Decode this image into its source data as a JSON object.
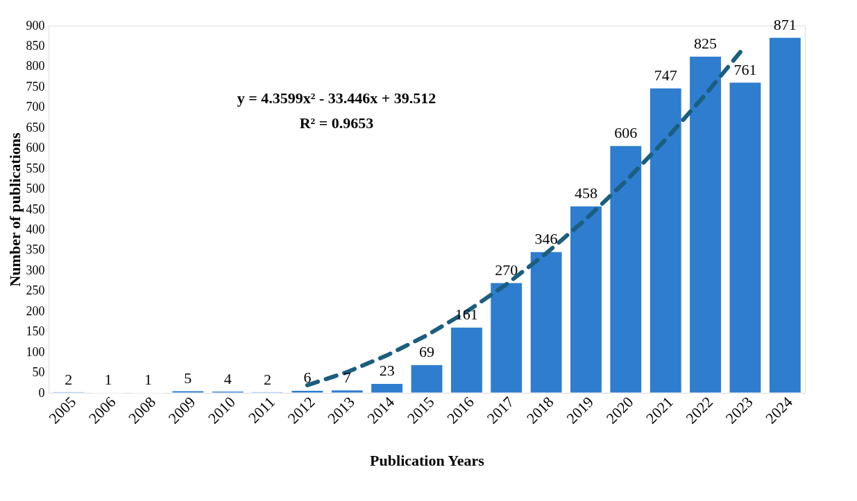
{
  "chart_data": {
    "type": "bar",
    "xlabel": "Publication Years",
    "ylabel": "Number of publications",
    "categories": [
      "2005",
      "2006",
      "2008",
      "2009",
      "2010",
      "2011",
      "2012",
      "2013",
      "2014",
      "2015",
      "2016",
      "2017",
      "2018",
      "2019",
      "2020",
      "2021",
      "2022",
      "2023",
      "2024"
    ],
    "series": [
      {
        "color": "#2e7dcf",
        "values": [
          2,
          1,
          1,
          5,
          4,
          2,
          6,
          7,
          23,
          69,
          161,
          270,
          346,
          458,
          606,
          747,
          825,
          761,
          871
        ],
        "value_labels": [
          "2",
          "1",
          "1",
          "5",
          "4",
          "2",
          "6",
          "7",
          "23",
          "69",
          "161",
          "270",
          "346",
          "458",
          "606",
          "747",
          "825",
          "761",
          "871"
        ]
      },
      {
        "type": "line",
        "color": "#1b5e7e",
        "line_style": "dashed",
        "values": [
          null,
          null,
          null,
          null,
          null,
          null,
          19,
          51,
          92,
          141,
          199,
          266,
          342,
          426,
          519,
          621,
          731,
          850,
          null
        ]
      }
    ],
    "ylim": [
      0,
      900
    ],
    "yticks": [
      0,
      50,
      100,
      150,
      200,
      250,
      300,
      350,
      400,
      450,
      500,
      550,
      600,
      650,
      700,
      750,
      800,
      850,
      900
    ],
    "grid": false,
    "annotations": [
      "y = 4.3599x² - 33.446x + 39.512",
      "R² = 0.9653"
    ]
  }
}
